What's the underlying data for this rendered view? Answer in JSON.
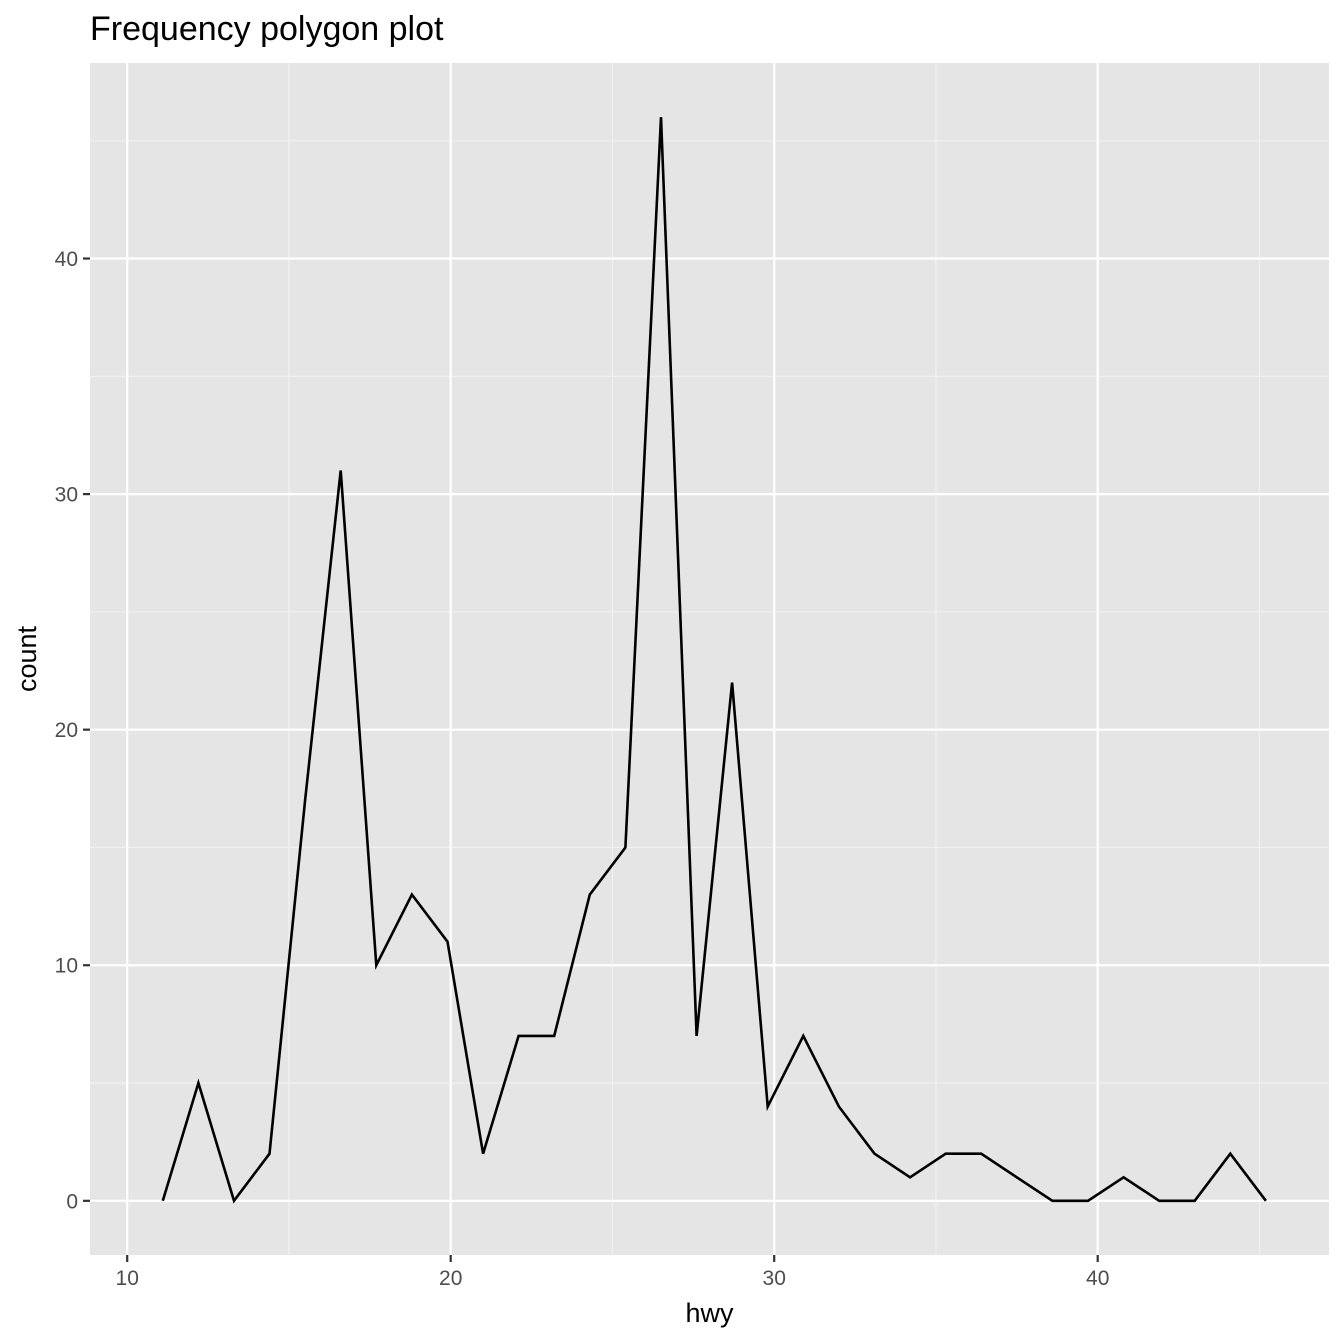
{
  "chart_data": {
    "type": "line",
    "title": "Frequency polygon plot",
    "xlabel": "hwy",
    "ylabel": "count",
    "xlim": [
      8.85,
      47.15
    ],
    "ylim": [
      -2.3,
      48.3
    ],
    "xticks": [
      10,
      20,
      30,
      40
    ],
    "yticks": [
      0,
      10,
      20,
      30,
      40
    ],
    "xtick_labels": [
      "10",
      "20",
      "30",
      "40"
    ],
    "ytick_labels": [
      "0",
      "10",
      "20",
      "30",
      "40"
    ],
    "grid": true,
    "background": "#e5e5e5",
    "grid_color": "#ffffff",
    "line_color": "#000000",
    "series": [
      {
        "x": [
          11.1,
          12.2,
          13.3,
          14.4,
          15.5,
          16.6,
          17.7,
          18.8,
          19.9,
          21.0,
          22.1,
          23.2,
          24.3,
          25.4,
          26.5,
          27.6,
          28.7,
          29.8,
          30.9,
          32.0,
          33.1,
          34.2,
          35.3,
          36.4,
          37.5,
          38.6,
          39.7,
          40.8,
          41.9,
          43.0,
          44.1,
          45.2
        ],
        "values": [
          0,
          5,
          0,
          2,
          17,
          31,
          10,
          13,
          11,
          2,
          7,
          7,
          13,
          15,
          46,
          7,
          22,
          4,
          7,
          4,
          2,
          1,
          2,
          2,
          1,
          0,
          0,
          1,
          0,
          0,
          2,
          0
        ]
      }
    ]
  }
}
